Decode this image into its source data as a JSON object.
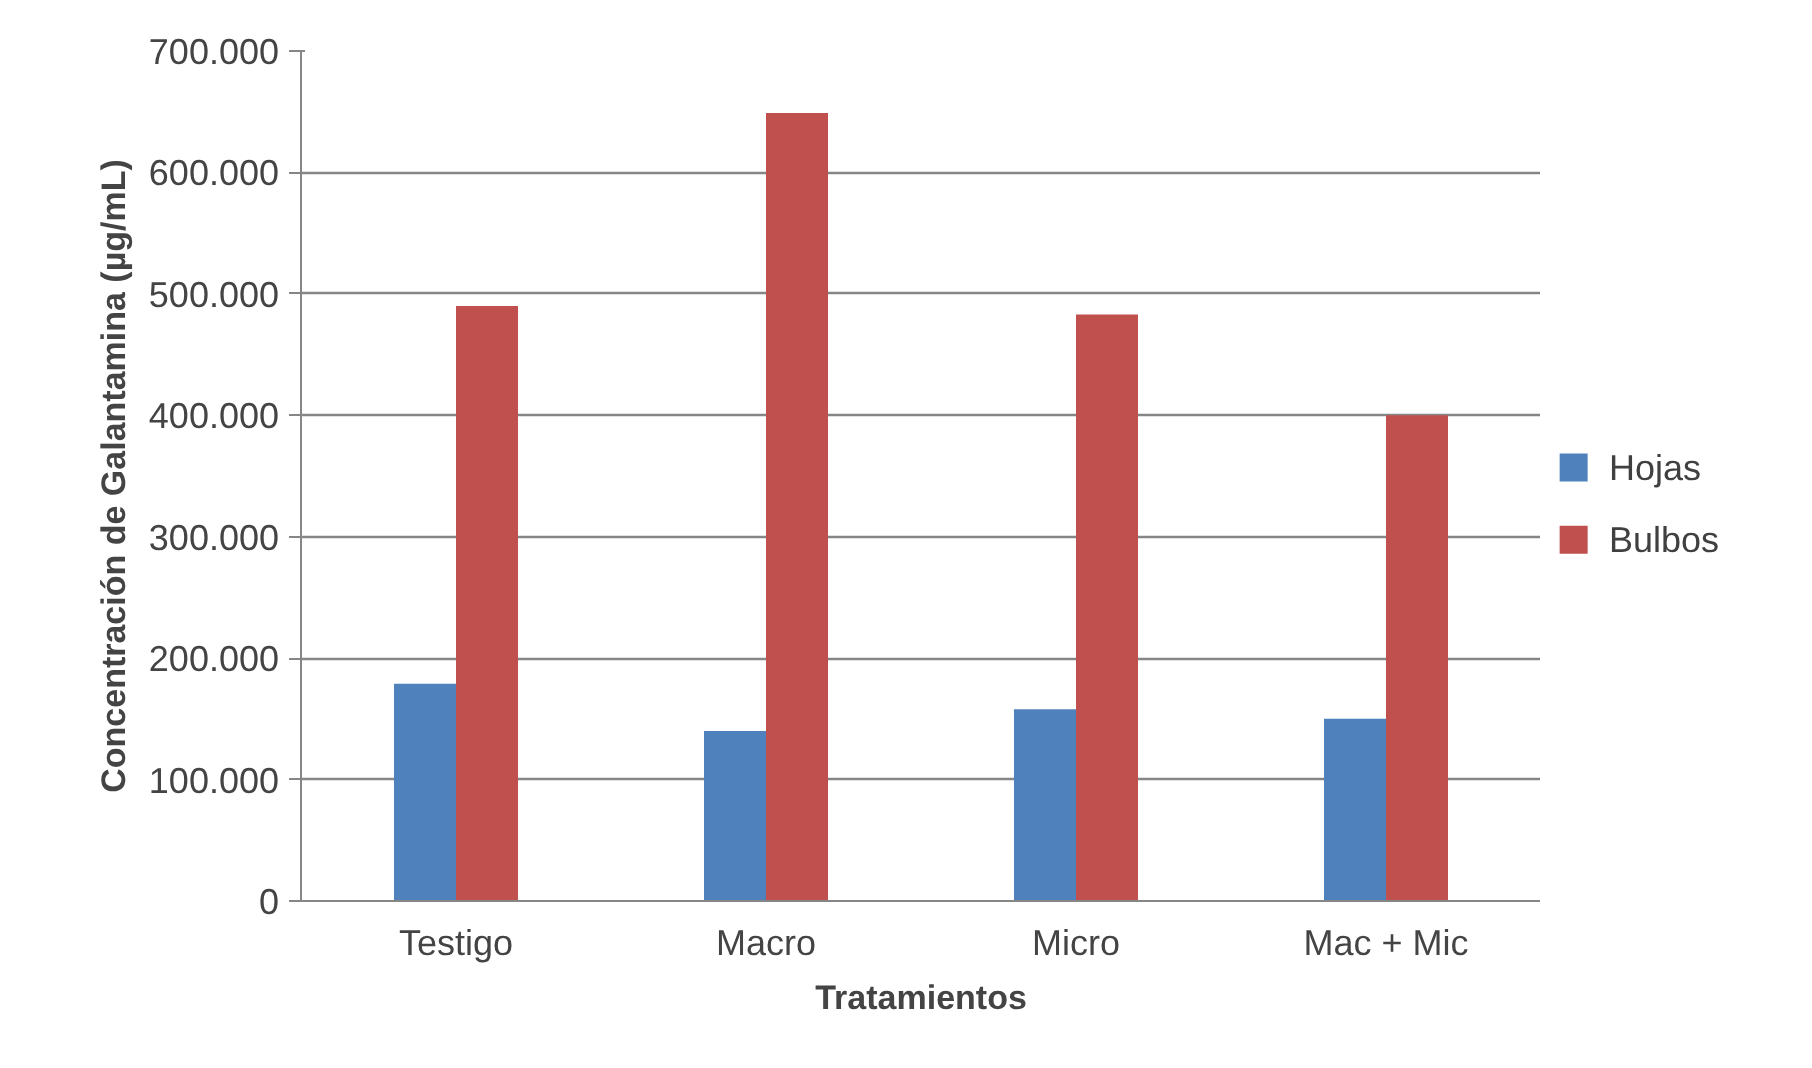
{
  "chart_data": {
    "type": "bar",
    "xlabel": "Tratamientos",
    "ylabel": "Concentración de Galantamina (µg/mL)",
    "categories": [
      "Testigo",
      "Macro",
      "Micro",
      "Mac + Mic"
    ],
    "series": [
      {
        "name": "Hojas",
        "color": "#4f81bd",
        "values": [
          179000,
          140000,
          158000,
          150000
        ]
      },
      {
        "name": "Bulbos",
        "color": "#c0504d",
        "values": [
          490000,
          649000,
          483000,
          400000
        ]
      }
    ],
    "ylim": [
      0,
      700000
    ],
    "yticks": [
      0,
      {
        "value": 100000,
        "label": "100.000"
      },
      {
        "value": 200000,
        "label": "200.000"
      },
      {
        "value": 300000,
        "label": "300.000"
      },
      {
        "value": 400000,
        "label": "400.000"
      },
      {
        "value": 500000,
        "label": "500.000"
      },
      {
        "value": 600000,
        "label": "600.000"
      },
      {
        "value": 700000,
        "label": "700.000"
      }
    ],
    "grid": "y",
    "legend": "right"
  }
}
